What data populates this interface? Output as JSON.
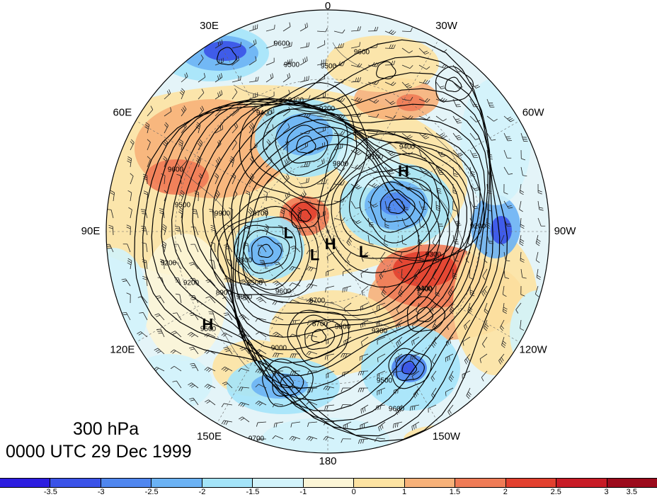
{
  "map": {
    "level_label": "300 hPa",
    "time_label": "0000 UTC 29 Dec 1999",
    "projection": "north-polar-stereographic",
    "field_shaded": "anomaly",
    "field_contoured": "geopotential-height",
    "longitude_labels": [
      {
        "text": "0",
        "lon": 0
      },
      {
        "text": "30W",
        "lon": -30
      },
      {
        "text": "60W",
        "lon": -60
      },
      {
        "text": "90W",
        "lon": -90
      },
      {
        "text": "120W",
        "lon": -120
      },
      {
        "text": "150W",
        "lon": -150
      },
      {
        "text": "180",
        "lon": 180
      },
      {
        "text": "150E",
        "lon": 150
      },
      {
        "text": "120E",
        "lon": 120
      },
      {
        "text": "90E",
        "lon": 90
      },
      {
        "text": "60E",
        "lon": 60
      },
      {
        "text": "30E",
        "lon": 30
      }
    ],
    "pressure_centers": [
      {
        "type": "H",
        "lon": -52,
        "lat": 50
      },
      {
        "type": "L",
        "lon": 152,
        "lat": 78
      },
      {
        "type": "H",
        "lon": -169,
        "lat": 84
      },
      {
        "type": "L",
        "lon": 94,
        "lat": 73
      },
      {
        "type": "L",
        "lon": -121,
        "lat": 72
      },
      {
        "type": "H",
        "lon": 128,
        "lat": 30
      }
    ],
    "contour_labels": [
      "9600",
      "9500",
      "9500",
      "9600",
      "9300",
      "9200",
      "9400",
      "9400",
      "9100",
      "9600",
      "9800",
      "9500",
      "9900",
      "8700",
      "8800",
      "9200",
      "8900",
      "9000",
      "8500",
      "9600",
      "9200",
      "8700",
      "8700",
      "9000",
      "9500",
      "9300",
      "9400",
      "9500",
      "9800",
      "9400",
      "9600",
      "9700",
      "9200",
      "9300"
    ],
    "shading_colors": [
      "#2c1de0",
      "#3a52e8",
      "#4f86ef",
      "#6bb2f4",
      "#a4e4f9",
      "#d2f3fb",
      "#fcf5d6",
      "#fde3a2",
      "#f7b179",
      "#ef7b56",
      "#e2402f",
      "#c81b26",
      "#9c0a1c"
    ]
  },
  "colorbar": {
    "colors": [
      "#2c1de0",
      "#3a52e8",
      "#4f86ef",
      "#6bb2f4",
      "#a4e4f9",
      "#d2f3fb",
      "#fcf5d6",
      "#fde3a2",
      "#f7b179",
      "#ef7b56",
      "#e2402f",
      "#c81b26",
      "#9c0a1c"
    ],
    "ticks": [
      "-3.5",
      "-3",
      "-2.5",
      "-2",
      "-1.5",
      "-1",
      "0",
      "1",
      "1.5",
      "2",
      "2.5",
      "3",
      "3.5"
    ]
  }
}
